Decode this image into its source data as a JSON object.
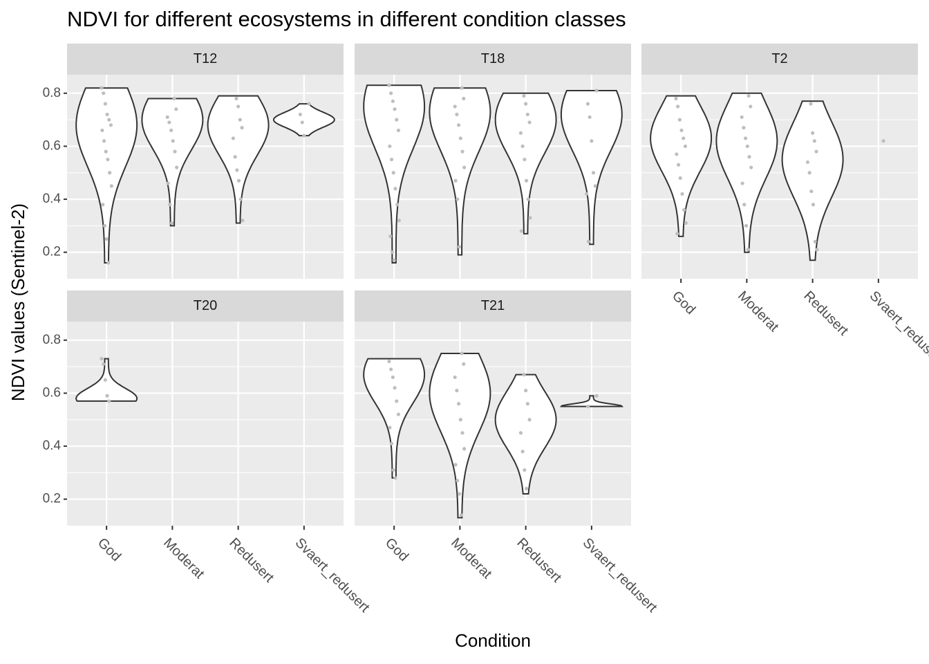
{
  "chart_data": {
    "type": "violin",
    "title": "NDVI for different ecosystems in different condition classes",
    "xlabel": "Condition",
    "ylabel": "NDVI values (Sentinel-2)",
    "categories": [
      "God",
      "Moderat",
      "Redusert",
      "Svaert_redusert"
    ],
    "ylim": [
      0.1,
      0.87
    ],
    "yticks": [
      0.2,
      0.4,
      0.6,
      0.8
    ],
    "grid": true,
    "color": "#ffffff",
    "point_color": "#bebebe",
    "panels": [
      {
        "name": "T12",
        "violins": [
          {
            "min": 0.16,
            "max": 0.82,
            "peak": 0.68,
            "points": [
              0.82,
              0.8,
              0.76,
              0.72,
              0.7,
              0.68,
              0.66,
              0.62,
              0.58,
              0.55,
              0.5,
              0.45,
              0.38,
              0.3,
              0.25,
              0.16
            ]
          },
          {
            "min": 0.3,
            "max": 0.78,
            "peak": 0.7,
            "points": [
              0.78,
              0.74,
              0.71,
              0.69,
              0.66,
              0.62,
              0.58,
              0.52,
              0.46,
              0.38,
              0.31
            ]
          },
          {
            "min": 0.31,
            "max": 0.79,
            "peak": 0.68,
            "points": [
              0.78,
              0.75,
              0.7,
              0.67,
              0.63,
              0.56,
              0.51,
              0.47,
              0.4,
              0.32
            ]
          },
          {
            "min": 0.64,
            "max": 0.76,
            "peak": 0.7,
            "points": [
              0.76,
              0.72,
              0.69,
              0.64
            ]
          }
        ]
      },
      {
        "name": "T18",
        "violins": [
          {
            "min": 0.16,
            "max": 0.83,
            "peak": 0.75,
            "points": [
              0.83,
              0.8,
              0.77,
              0.74,
              0.7,
              0.66,
              0.6,
              0.55,
              0.5,
              0.44,
              0.38,
              0.32,
              0.26,
              0.2,
              0.17
            ]
          },
          {
            "min": 0.19,
            "max": 0.82,
            "peak": 0.73,
            "points": [
              0.82,
              0.78,
              0.75,
              0.72,
              0.68,
              0.63,
              0.58,
              0.52,
              0.47,
              0.4,
              0.22
            ]
          },
          {
            "min": 0.27,
            "max": 0.8,
            "peak": 0.7,
            "points": [
              0.79,
              0.76,
              0.72,
              0.69,
              0.65,
              0.6,
              0.55,
              0.47,
              0.4,
              0.33,
              0.28
            ]
          },
          {
            "min": 0.23,
            "max": 0.81,
            "peak": 0.72,
            "points": [
              0.81,
              0.76,
              0.71,
              0.62,
              0.5,
              0.45,
              0.42,
              0.24
            ]
          }
        ]
      },
      {
        "name": "T2",
        "violins": [
          {
            "min": 0.26,
            "max": 0.79,
            "peak": 0.63,
            "points": [
              0.78,
              0.75,
              0.7,
              0.66,
              0.63,
              0.6,
              0.57,
              0.53,
              0.48,
              0.42,
              0.36,
              0.31,
              0.27
            ]
          },
          {
            "min": 0.2,
            "max": 0.8,
            "peak": 0.62,
            "points": [
              0.79,
              0.75,
              0.71,
              0.67,
              0.63,
              0.6,
              0.56,
              0.52,
              0.46,
              0.38,
              0.3,
              0.21
            ]
          },
          {
            "min": 0.17,
            "max": 0.77,
            "peak": 0.55,
            "points": [
              0.76,
              0.65,
              0.62,
              0.58,
              0.54,
              0.5,
              0.43,
              0.38,
              0.24,
              0.21
            ]
          },
          {
            "points": [
              0.62
            ]
          }
        ]
      },
      {
        "name": "T20",
        "violins": [
          {
            "min": 0.57,
            "max": 0.73,
            "peak": 0.58,
            "points": [
              0.73,
              0.71,
              0.65,
              0.59,
              0.57
            ]
          },
          {
            "points": []
          },
          {
            "points": []
          },
          {
            "points": []
          }
        ]
      },
      {
        "name": "T21",
        "violins": [
          {
            "min": 0.28,
            "max": 0.73,
            "peak": 0.67,
            "points": [
              0.72,
              0.69,
              0.66,
              0.62,
              0.57,
              0.52,
              0.47,
              0.41,
              0.31,
              0.28
            ]
          },
          {
            "min": 0.13,
            "max": 0.75,
            "peak": 0.6,
            "points": [
              0.75,
              0.71,
              0.66,
              0.61,
              0.56,
              0.5,
              0.45,
              0.39,
              0.33,
              0.27,
              0.22,
              0.14
            ]
          },
          {
            "min": 0.22,
            "max": 0.67,
            "peak": 0.5,
            "points": [
              0.67,
              0.61,
              0.56,
              0.5,
              0.45,
              0.38,
              0.31,
              0.24
            ]
          },
          {
            "min": 0.55,
            "max": 0.59,
            "peak": 0.55,
            "points": [
              0.59,
              0.55
            ]
          }
        ]
      }
    ]
  }
}
